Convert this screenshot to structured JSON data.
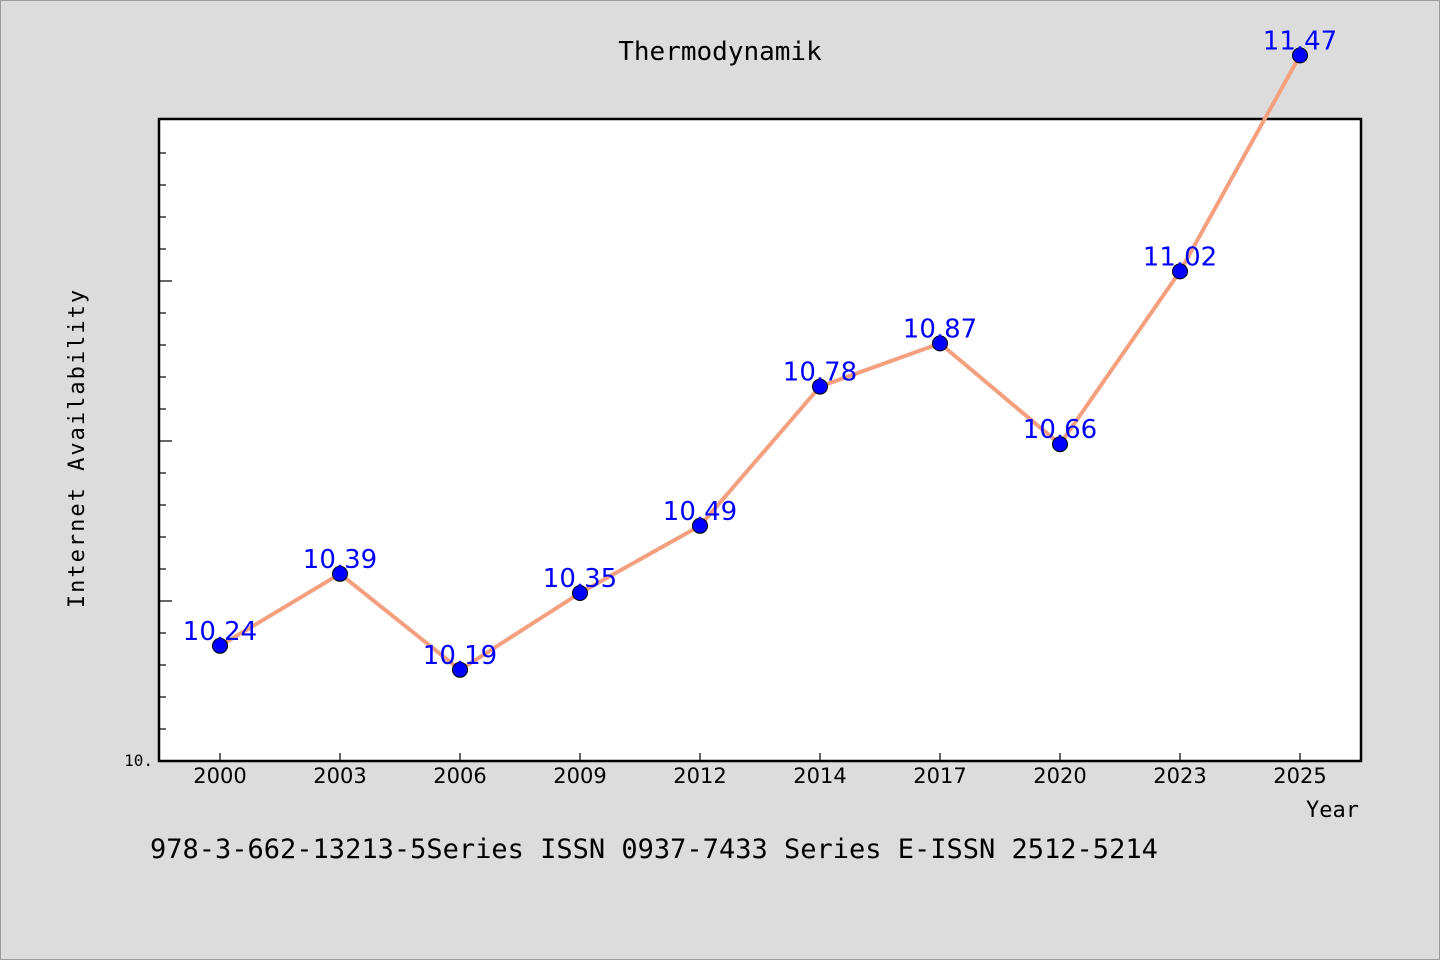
{
  "chart_data": {
    "type": "line",
    "title": "Thermodynamik",
    "xlabel": "Year",
    "ylabel": "Internet Availability",
    "categories": [
      "2000",
      "2003",
      "2006",
      "2009",
      "2012",
      "2014",
      "2017",
      "2020",
      "2023",
      "2025"
    ],
    "series": [
      {
        "values": [
          10.24,
          10.39,
          10.19,
          10.35,
          10.49,
          10.78,
          10.87,
          10.66,
          11.02,
          11.47
        ],
        "point_labels": [
          "10.24",
          "10.39",
          "10.19",
          "10.35",
          "10.49",
          "10.78",
          "10.87",
          "10.66",
          "11.02",
          "11.47"
        ]
      }
    ],
    "ytick_labels": [
      "10."
    ],
    "ylim": [
      10.0,
      12.0
    ],
    "grid": false,
    "colors": {
      "line": "#f4a07e",
      "marker": "#0000ff",
      "data_label": "#0000ff",
      "plot_background": "#ffffff",
      "figure_background": "#dcdcdc"
    }
  },
  "footer": {
    "text": "978-3-662-13213-5Series ISSN 0937-7433 Series E-ISSN 2512-5214"
  }
}
